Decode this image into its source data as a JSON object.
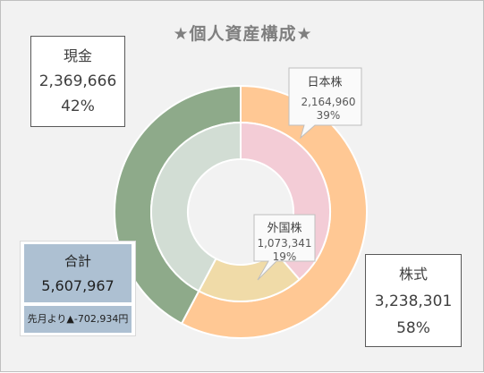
{
  "title": "★個人資産構成★",
  "cash_box": {
    "label": "現金",
    "value": "2,369,666",
    "pct": "42%"
  },
  "stock_box": {
    "label": "株式",
    "value": "3,238,301",
    "pct": "58%"
  },
  "total_box": {
    "label": "合計",
    "value": "5,607,967",
    "diff": "先月より▲-702,934円"
  },
  "chart_data": {
    "type": "pie",
    "title": "★個人資産構成★",
    "outer": [
      {
        "name": "株式",
        "value": 3238301,
        "pct": "58%",
        "color": "#ffc894"
      },
      {
        "name": "現金",
        "value": 2369666,
        "pct": "42%",
        "color": "#8eaa8a"
      }
    ],
    "inner": [
      {
        "name": "日本株",
        "value": 2164960,
        "label_value": "2,164,960",
        "pct": "39%",
        "color": "#f3ccd6"
      },
      {
        "name": "外国株",
        "value": 1073341,
        "label_value": "1,073,341",
        "pct": "19%",
        "color": "#f0dba8"
      },
      {
        "name": "現金",
        "value": 2369666,
        "label_value": "",
        "pct": "",
        "color": "#d2ddd4"
      }
    ]
  }
}
